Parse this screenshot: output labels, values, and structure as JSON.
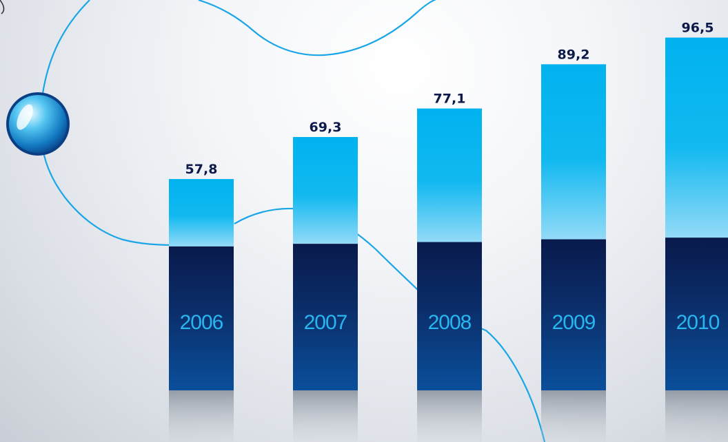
{
  "colors": {
    "bar_top_upper": "#00b0ee",
    "bar_top_lower": "#8fd8f6",
    "bar_base_upper": "#0a1a4e",
    "bar_base_lower": "#0a4c96",
    "value_text": "#0d1a4a",
    "year_text": "#29b6f0",
    "curve": "#1aa6e6"
  },
  "chart_data": {
    "type": "bar",
    "categories": [
      "2006",
      "2007",
      "2008",
      "2009",
      "2010"
    ],
    "values": [
      57.8,
      69.3,
      77.1,
      89.2,
      96.5
    ],
    "value_labels": [
      "57,8",
      "69,3",
      "77,1",
      "89,2",
      "96,5"
    ],
    "title": "",
    "xlabel": "",
    "ylabel": "",
    "ylim": [
      0,
      100
    ],
    "grid": false,
    "legend": "none"
  }
}
